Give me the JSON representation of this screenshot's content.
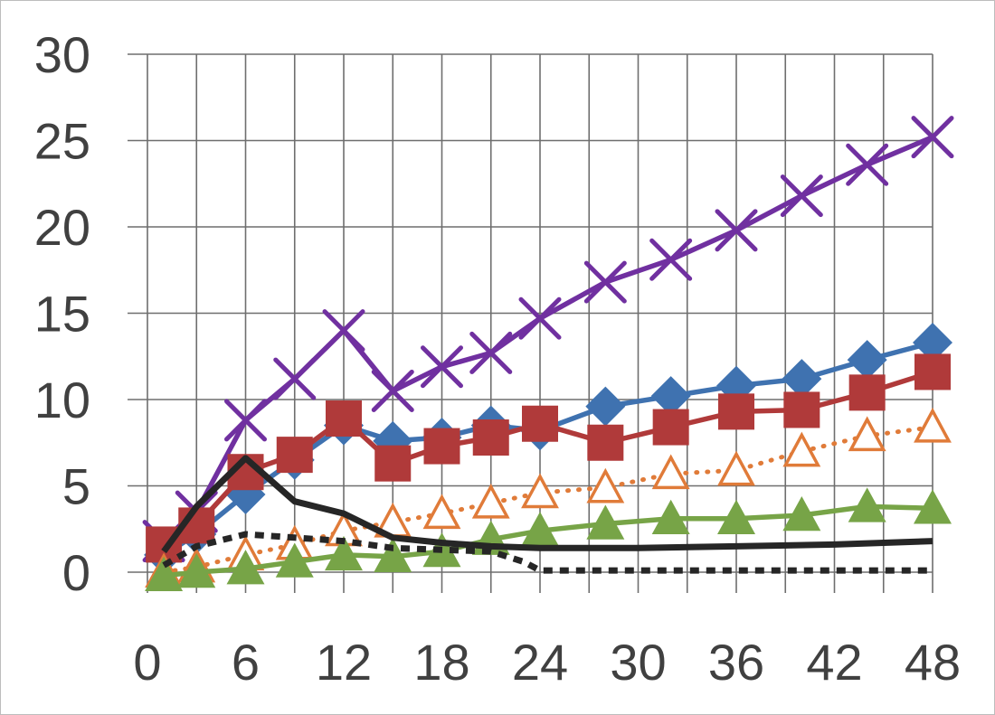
{
  "chart_data": {
    "type": "line",
    "title": "",
    "xlabel": "",
    "ylabel": "",
    "xlim": [
      0,
      48
    ],
    "ylim": [
      0,
      30
    ],
    "x_ticks": [
      0,
      6,
      12,
      18,
      24,
      30,
      36,
      42,
      48
    ],
    "y_ticks": [
      0,
      5,
      10,
      15,
      20,
      25,
      30
    ],
    "x_tick_labels": [
      "0",
      "6",
      "12",
      "18",
      "24",
      "30",
      "36",
      "42",
      "48"
    ],
    "y_tick_labels": [
      "0",
      "5",
      "10",
      "15",
      "20",
      "25",
      "30"
    ],
    "grid": true,
    "legend": "none",
    "series": [
      {
        "color": "#7030a0",
        "line": "solid",
        "marker": "x",
        "x": [
          1,
          3,
          6,
          9,
          12,
          15,
          18,
          21,
          24,
          28,
          32,
          36,
          40,
          44,
          48
        ],
        "y": [
          1.8,
          3.5,
          8.8,
          11.2,
          14.0,
          10.5,
          11.9,
          12.7,
          14.7,
          16.8,
          18.1,
          19.8,
          21.8,
          23.6,
          25.2
        ]
      },
      {
        "color": "#3f72b0",
        "line": "solid",
        "marker": "diamond",
        "x": [
          1,
          3,
          6,
          9,
          12,
          15,
          18,
          21,
          24,
          28,
          32,
          36,
          40,
          44,
          48
        ],
        "y": [
          1.0,
          2.2,
          4.5,
          6.5,
          8.5,
          7.6,
          7.8,
          8.5,
          8.2,
          9.6,
          10.2,
          10.8,
          11.2,
          12.3,
          13.3
        ]
      },
      {
        "color": "#b03a3a",
        "line": "solid",
        "marker": "square",
        "x": [
          1,
          3,
          6,
          9,
          12,
          15,
          18,
          21,
          24,
          28,
          32,
          36,
          40,
          44,
          48
        ],
        "y": [
          1.6,
          2.7,
          5.8,
          6.8,
          8.9,
          6.3,
          7.3,
          7.8,
          8.6,
          7.5,
          8.4,
          9.3,
          9.4,
          10.4,
          11.6
        ]
      },
      {
        "color": "#e07b39",
        "line": "dotted",
        "marker": "triangle-open",
        "x": [
          1,
          3,
          6,
          9,
          12,
          15,
          18,
          21,
          24,
          28,
          32,
          36,
          40,
          44,
          48
        ],
        "y": [
          0.0,
          0.3,
          1.0,
          1.6,
          2.4,
          2.9,
          3.4,
          4.0,
          4.6,
          4.9,
          5.7,
          5.9,
          7.0,
          7.9,
          8.4
        ]
      },
      {
        "color": "#77a447",
        "line": "solid",
        "marker": "triangle",
        "x": [
          1,
          3,
          6,
          9,
          12,
          15,
          18,
          21,
          24,
          28,
          32,
          36,
          40,
          44,
          48
        ],
        "y": [
          -0.2,
          0.0,
          0.2,
          0.6,
          1.0,
          0.9,
          1.2,
          1.9,
          2.4,
          2.8,
          3.1,
          3.1,
          3.3,
          3.8,
          3.7
        ]
      },
      {
        "color": "#262626",
        "line": "solid",
        "marker": "none",
        "x": [
          1,
          3,
          6,
          9,
          12,
          15,
          18,
          21,
          24,
          30,
          36,
          42,
          48
        ],
        "y": [
          1.2,
          3.8,
          6.6,
          4.1,
          3.4,
          2.0,
          1.7,
          1.5,
          1.4,
          1.4,
          1.5,
          1.6,
          1.8
        ]
      },
      {
        "color": "#262626",
        "line": "dotted",
        "marker": "none",
        "x": [
          1,
          3,
          6,
          9,
          12,
          15,
          18,
          21,
          23,
          24,
          30,
          36,
          42,
          48
        ],
        "y": [
          0.4,
          1.5,
          2.2,
          2.0,
          1.8,
          1.4,
          1.3,
          1.2,
          0.6,
          0.1,
          0.1,
          0.1,
          0.1,
          0.1
        ]
      }
    ]
  }
}
